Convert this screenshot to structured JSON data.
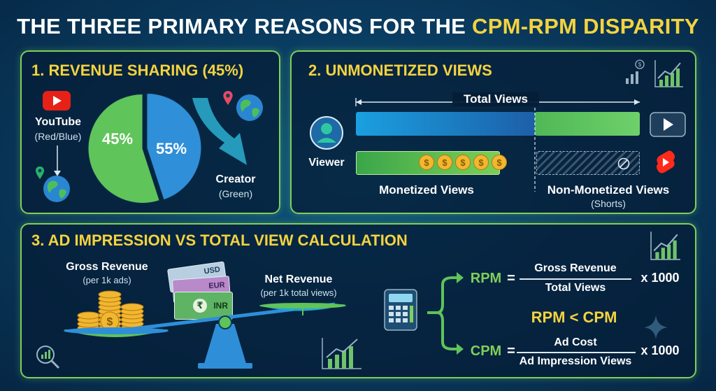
{
  "title": {
    "main": "THE THREE PRIMARY REASONS FOR THE ",
    "highlight": "CPM-RPM DISPARITY"
  },
  "colors": {
    "accent": "#f4d33f",
    "green": "#7fcf5a",
    "blue": "#2f8fd8",
    "panel_border": "#7fcf5a"
  },
  "panel1": {
    "heading": "1. REVENUE SHARING (45%)",
    "youtube_label": "YouTube",
    "youtube_sub": "(Red/Blue)",
    "creator_label": "Creator",
    "creator_sub": "(Green)",
    "slices": [
      {
        "name": "YouTube",
        "label": "45%",
        "value": 45,
        "color": "#2f8fd8"
      },
      {
        "name": "Creator",
        "label": "55%",
        "value": 55,
        "color": "#5fc45a"
      }
    ]
  },
  "panel2": {
    "heading": "2. UNMONETIZED VIEWS",
    "total_label": "Total Views",
    "viewer_label": "Viewer",
    "monetized_label": "Monetized Views",
    "non_monetized_label": "Non-Monetized Views",
    "non_monetized_sub": "(Shorts)",
    "coins": [
      "$",
      "$",
      "$",
      "$",
      "$"
    ]
  },
  "panel3": {
    "heading": "3. AD IMPRESSION VS TOTAL VIEW CALCULATION",
    "gross_label": "Gross Revenue",
    "gross_sub": "(per 1k ads)",
    "net_label": "Net Revenue",
    "net_sub": "(per 1k total views)",
    "bills": [
      "USD",
      "EUR",
      "INR"
    ],
    "rupee": "₹",
    "coin_symbol": "$",
    "rpm": {
      "name": "RPM",
      "eq": "=",
      "numerator": "Gross Revenue",
      "denominator": "Total Views",
      "mult": "x 1000"
    },
    "compare": "RPM < CPM",
    "cpm": {
      "name": "CPM",
      "eq": "=",
      "numerator": "Ad Cost",
      "denominator": "Ad Impression Views",
      "mult": "x 1000"
    }
  }
}
